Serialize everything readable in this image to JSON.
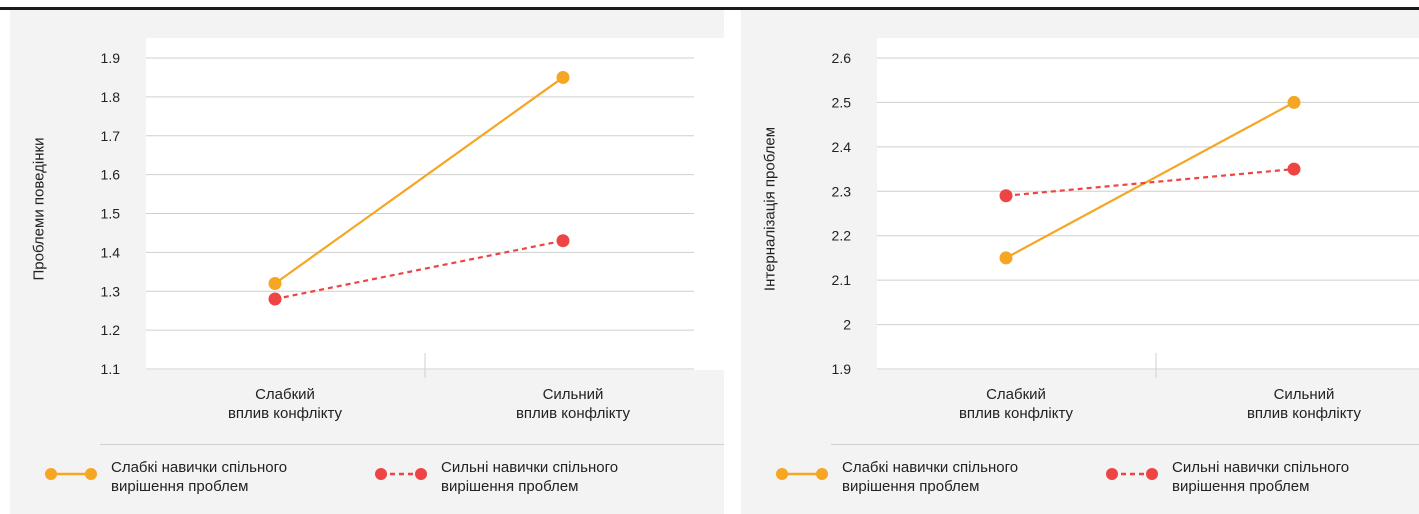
{
  "chart_data": [
    {
      "type": "line",
      "ylabel": "Проблеми поведінки",
      "ylim": [
        1.1,
        1.9
      ],
      "yticks": [
        "1.1",
        "1.2",
        "1.3",
        "1.4",
        "1.5",
        "1.6",
        "1.7",
        "1.8",
        "1.9"
      ],
      "categories": [
        {
          "l1": "Слабкий",
          "l2": "вплив конфлікту"
        },
        {
          "l1": "Сильний",
          "l2": "вплив конфлікту"
        }
      ],
      "series": [
        {
          "name": {
            "l1": "Слабкі навички спільного",
            "l2": "вирішення проблем"
          },
          "values": [
            1.32,
            1.85
          ],
          "color": "#f5a623",
          "dashed": false
        },
        {
          "name": {
            "l1": "Сильні навички спільного",
            "l2": "вирішення проблем"
          },
          "values": [
            1.28,
            1.43
          ],
          "color": "#ee4444",
          "dashed": true
        }
      ],
      "grid": true,
      "legend": "bottom"
    },
    {
      "type": "line",
      "ylabel": "Інтерналізація проблем",
      "ylim": [
        1.9,
        2.6
      ],
      "yticks": [
        "1.9",
        "2",
        "2.1",
        "2.2",
        "2.3",
        "2.4",
        "2.5",
        "2.6"
      ],
      "categories": [
        {
          "l1": "Слабкий",
          "l2": "вплив конфлікту"
        },
        {
          "l1": "Сильний",
          "l2": "вплив конфлікту"
        }
      ],
      "series": [
        {
          "name": {
            "l1": "Слабкі навички спільного",
            "l2": "вирішення проблем"
          },
          "values": [
            2.15,
            2.5
          ],
          "color": "#f5a623",
          "dashed": false
        },
        {
          "name": {
            "l1": "Сильні навички спільного",
            "l2": "вирішення проблем"
          },
          "values": [
            2.29,
            2.35
          ],
          "color": "#ee4444",
          "dashed": true
        }
      ],
      "grid": true,
      "legend": "bottom"
    }
  ]
}
